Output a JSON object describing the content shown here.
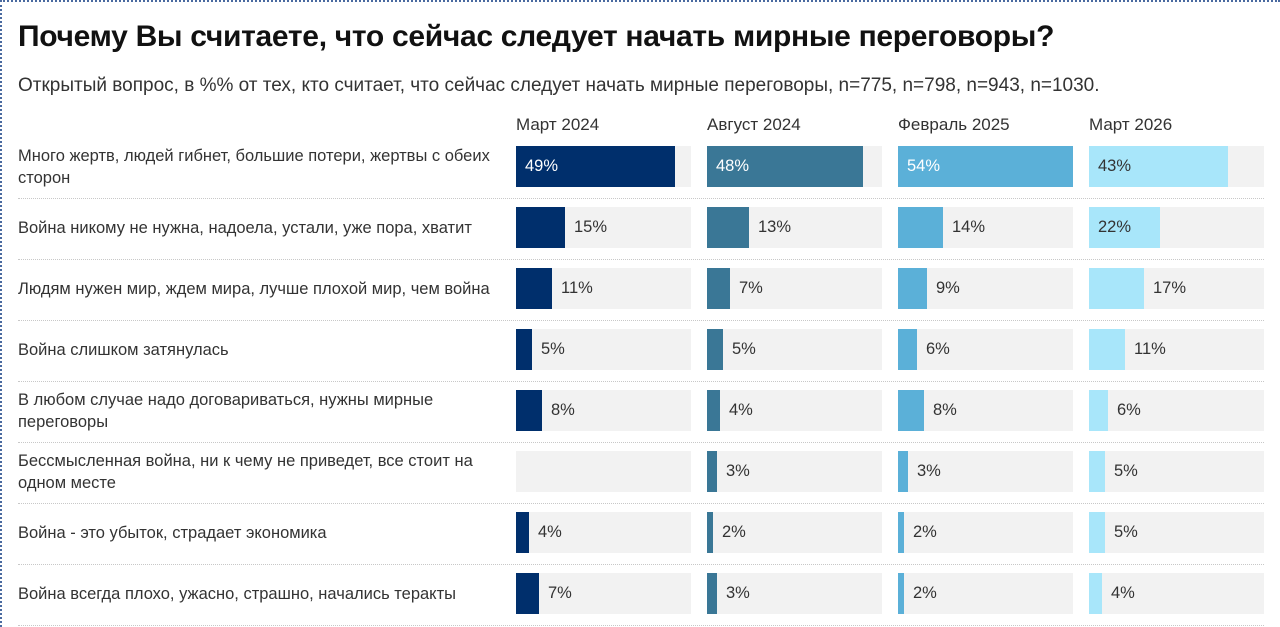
{
  "title": "Почему Вы считаете, что сейчас следует начать мирные переговоры?",
  "subtitle": "Открытый вопрос, в %% от тех, кто считает, что сейчас следует начать мирные переговоры, n=775, n=798, n=943, n=1030.",
  "chart_data": {
    "type": "bar",
    "orientation": "horizontal",
    "title": "Почему Вы считаете, что сейчас следует начать мирные переговоры?",
    "subtitle": "Открытый вопрос, в %% от тех, кто считает, что сейчас следует начать мирные переговоры, n=775, n=798, n=943, n=1030.",
    "unit": "%",
    "xlim": [
      0,
      54
    ],
    "categories": [
      "Много жертв, людей гибнет, большие потери, жертвы с обеих сторон",
      "Война никому не нужна, надоела, устали, уже пора, хватит",
      "Людям нужен мир, ждем мира, лучше плохой мир, чем война",
      "Война слишком затянулась",
      "В любом случае надо договариваться, нужны мирные переговоры",
      "Бессмысленная война, ни к чему не приведет, все стоит на одном месте",
      "Война - это убыток, страдает экономика",
      "Война всегда плохо, ужасно, страшно, начались теракты"
    ],
    "series": [
      {
        "name": "Март 2024",
        "color": "#002f6c",
        "label_color": "#ffffff",
        "values": [
          49,
          15,
          11,
          5,
          8,
          null,
          4,
          7
        ]
      },
      {
        "name": "Август 2024",
        "color": "#3a7796",
        "label_color": "#ffffff",
        "values": [
          48,
          13,
          7,
          5,
          4,
          3,
          2,
          3
        ]
      },
      {
        "name": "Февраль 2025",
        "color": "#5bb0d8",
        "label_color": "#ffffff",
        "values": [
          54,
          14,
          9,
          6,
          8,
          3,
          2,
          2
        ]
      },
      {
        "name": "Март 2026",
        "color": "#a8e6fa",
        "label_color": "#333333",
        "values": [
          43,
          22,
          17,
          11,
          6,
          5,
          5,
          4
        ]
      }
    ],
    "track_color": "#f2f2f2",
    "grid": false,
    "legend": "column-headers-top"
  }
}
